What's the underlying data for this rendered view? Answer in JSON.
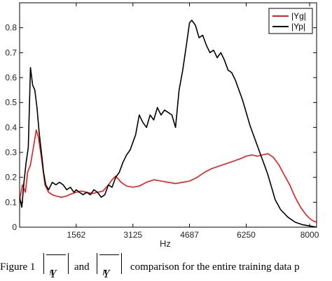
{
  "chart_data": {
    "type": "line",
    "title": "",
    "xlabel": "Hz",
    "ylabel": "",
    "xlim": [
      0,
      8192
    ],
    "ylim": [
      0,
      0.9
    ],
    "x_ticks": [
      {
        "value": 1562,
        "label": "1562"
      },
      {
        "value": 3125,
        "label": "3125"
      },
      {
        "value": 4687,
        "label": "4687"
      },
      {
        "value": 6250,
        "label": "6250"
      },
      {
        "value": 8000,
        "label": "8000"
      }
    ],
    "y_ticks": [
      {
        "value": 0,
        "label": "0"
      },
      {
        "value": 0.1,
        "label": "0.1"
      },
      {
        "value": 0.2,
        "label": "0.2"
      },
      {
        "value": 0.3,
        "label": "0.3"
      },
      {
        "value": 0.4,
        "label": "0.4"
      },
      {
        "value": 0.5,
        "label": "0.5"
      },
      {
        "value": 0.6,
        "label": "0.6"
      },
      {
        "value": 0.7,
        "label": "0.7"
      },
      {
        "value": 0.8,
        "label": "0.8"
      }
    ],
    "grid": false,
    "legend": "top-right",
    "series": [
      {
        "name": "|Yg|",
        "color": "#e41a1c",
        "x": [
          0,
          80,
          160,
          220,
          300,
          380,
          460,
          520,
          600,
          700,
          800,
          900,
          1000,
          1150,
          1300,
          1450,
          1562,
          1700,
          1850,
          2000,
          2150,
          2300,
          2450,
          2550,
          2650,
          2800,
          2950,
          3125,
          3300,
          3500,
          3700,
          3900,
          4100,
          4300,
          4500,
          4687,
          4900,
          5100,
          5300,
          5500,
          5700,
          5900,
          6100,
          6250,
          6400,
          6550,
          6700,
          6850,
          7000,
          7150,
          7300,
          7450,
          7600,
          7750,
          7900,
          8000,
          8100,
          8192
        ],
        "y": [
          0.11,
          0.17,
          0.14,
          0.22,
          0.25,
          0.32,
          0.39,
          0.36,
          0.28,
          0.17,
          0.14,
          0.13,
          0.125,
          0.12,
          0.125,
          0.135,
          0.14,
          0.145,
          0.14,
          0.135,
          0.14,
          0.145,
          0.17,
          0.19,
          0.205,
          0.18,
          0.165,
          0.16,
          0.165,
          0.18,
          0.19,
          0.185,
          0.18,
          0.175,
          0.18,
          0.185,
          0.2,
          0.22,
          0.235,
          0.245,
          0.255,
          0.265,
          0.275,
          0.285,
          0.29,
          0.285,
          0.29,
          0.295,
          0.28,
          0.25,
          0.21,
          0.17,
          0.12,
          0.08,
          0.05,
          0.035,
          0.025,
          0.02
        ]
      },
      {
        "name": "|Yp|",
        "color": "#000000",
        "x": [
          0,
          60,
          120,
          180,
          240,
          300,
          360,
          420,
          480,
          540,
          600,
          660,
          720,
          800,
          900,
          1000,
          1100,
          1200,
          1300,
          1400,
          1500,
          1562,
          1650,
          1750,
          1850,
          1950,
          2050,
          2150,
          2250,
          2350,
          2450,
          2550,
          2650,
          2750,
          2850,
          2950,
          3050,
          3125,
          3200,
          3300,
          3400,
          3500,
          3600,
          3700,
          3800,
          3900,
          4000,
          4100,
          4200,
          4300,
          4400,
          4500,
          4600,
          4687,
          4750,
          4850,
          4950,
          5050,
          5150,
          5250,
          5350,
          5450,
          5550,
          5650,
          5750,
          5850,
          5950,
          6050,
          6150,
          6250,
          6350,
          6450,
          6550,
          6650,
          6750,
          6850,
          6950,
          7050,
          7200,
          7400,
          7600,
          7800,
          8000,
          8192
        ],
        "y": [
          0.12,
          0.08,
          0.18,
          0.26,
          0.32,
          0.64,
          0.57,
          0.55,
          0.48,
          0.38,
          0.3,
          0.22,
          0.17,
          0.15,
          0.18,
          0.17,
          0.18,
          0.17,
          0.15,
          0.16,
          0.14,
          0.15,
          0.14,
          0.13,
          0.14,
          0.13,
          0.15,
          0.14,
          0.12,
          0.13,
          0.17,
          0.16,
          0.2,
          0.22,
          0.26,
          0.29,
          0.31,
          0.34,
          0.37,
          0.45,
          0.42,
          0.4,
          0.45,
          0.43,
          0.48,
          0.45,
          0.47,
          0.46,
          0.45,
          0.4,
          0.55,
          0.63,
          0.73,
          0.82,
          0.83,
          0.81,
          0.76,
          0.77,
          0.73,
          0.7,
          0.71,
          0.68,
          0.7,
          0.67,
          0.63,
          0.62,
          0.59,
          0.55,
          0.51,
          0.46,
          0.41,
          0.37,
          0.33,
          0.29,
          0.25,
          0.21,
          0.16,
          0.11,
          0.07,
          0.04,
          0.02,
          0.01,
          0.005,
          0.0
        ]
      }
    ]
  },
  "caption": {
    "lead": "Figure 1",
    "sym_g": "Y",
    "sub_g": "g",
    "mid": "and",
    "sym_p": "Y",
    "sub_p": "p",
    "tail": "comparison for the entire training data p"
  }
}
